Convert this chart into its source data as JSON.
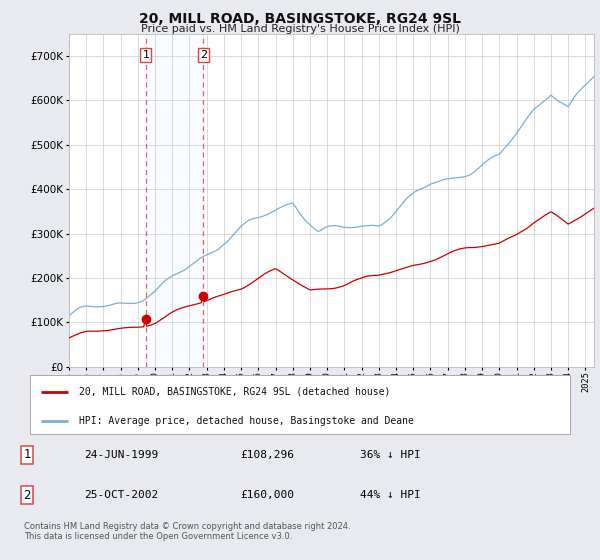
{
  "title": "20, MILL ROAD, BASINGSTOKE, RG24 9SL",
  "subtitle": "Price paid vs. HM Land Registry's House Price Index (HPI)",
  "legend_line1": "20, MILL ROAD, BASINGSTOKE, RG24 9SL (detached house)",
  "legend_line2": "HPI: Average price, detached house, Basingstoke and Deane",
  "footer": "Contains HM Land Registry data © Crown copyright and database right 2024.\nThis data is licensed under the Open Government Licence v3.0.",
  "sale1_date": "24-JUN-1999",
  "sale1_price": "£108,296",
  "sale1_hpi": "36% ↓ HPI",
  "sale2_date": "25-OCT-2002",
  "sale2_price": "£160,000",
  "sale2_hpi": "44% ↓ HPI",
  "sale1_year": 1999.47,
  "sale1_value": 108296,
  "sale2_year": 2002.8,
  "sale2_value": 160000,
  "red_color": "#cc0000",
  "blue_color": "#7bafd4",
  "shade_color": "#ddeeff",
  "vline_color": "#dd4444",
  "ylim_max": 750000,
  "xlim_min": 1995.0,
  "xlim_max": 2025.5,
  "background_color": "#e8eaf0",
  "plot_bg_color": "#ffffff",
  "grid_color": "#cccccc"
}
